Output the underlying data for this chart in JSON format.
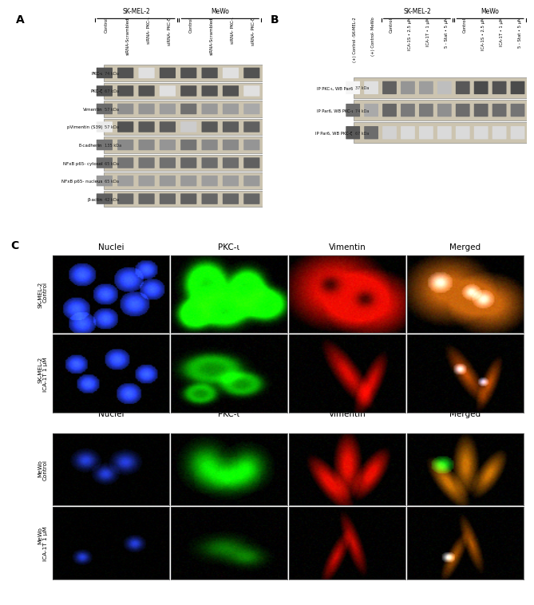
{
  "background_color": "#ffffff",
  "panel_A": {
    "label": "A",
    "title_SK": "SK-MEL-2",
    "title_MeWo": "MeWo",
    "col_labels": [
      "Control",
      "siRNA-Scrambled",
      "siRNA- PKC-ι",
      "siRNA- PKC-ζ",
      "Control",
      "siRNA-Scrambled",
      "siRNA- PKC-ι",
      "siRNA- PKC-ζ"
    ],
    "row_labels": [
      [
        "PKC-ι",
        "74 kDa"
      ],
      [
        "PKC-ζ",
        "67 kDa"
      ],
      [
        "Vimentin",
        "57 kDa"
      ],
      [
        "pVimentin (S39)",
        "57 kDa"
      ],
      [
        "E-cadherin",
        "135 kDa"
      ],
      [
        "NFxB p65- cytosol",
        "65 kDa"
      ],
      [
        "NFxB p65- nucleus",
        "65 kDa"
      ],
      [
        "β-actin",
        "42 kDa"
      ]
    ],
    "band_intensities": [
      [
        0.85,
        0.85,
        0.15,
        0.85,
        0.85,
        0.85,
        0.15,
        0.85
      ],
      [
        0.85,
        0.85,
        0.85,
        0.15,
        0.85,
        0.85,
        0.85,
        0.15
      ],
      [
        0.72,
        0.55,
        0.52,
        0.48,
        0.7,
        0.5,
        0.48,
        0.42
      ],
      [
        0.1,
        0.85,
        0.82,
        0.8,
        0.25,
        0.82,
        0.8,
        0.78
      ],
      [
        0.68,
        0.58,
        0.58,
        0.52,
        0.68,
        0.58,
        0.58,
        0.52
      ],
      [
        0.72,
        0.68,
        0.68,
        0.7,
        0.75,
        0.72,
        0.72,
        0.78
      ],
      [
        0.5,
        0.48,
        0.48,
        0.5,
        0.5,
        0.48,
        0.48,
        0.5
      ],
      [
        0.78,
        0.75,
        0.75,
        0.75,
        0.78,
        0.75,
        0.75,
        0.75
      ]
    ]
  },
  "panel_B": {
    "label": "B",
    "title_SK": "SK-MEL-2",
    "title_MeWo": "MeWo",
    "col_labels": [
      "(+) Control -SK-MEL-2",
      "(+) Control- MeWo",
      "Control",
      "ICA-1S • 2.5 μM",
      "ICA-1T • 1 μM",
      "5 - Stat • 5 μM",
      "Control",
      "ICA-1S • 2.5 μM",
      "ICA-1T • 1 μM",
      "5 - Stat • 5 μM"
    ],
    "row_labels": [
      [
        "IP PKC-ι, WB Par6",
        "37 kDa"
      ],
      [
        "IP Par6, WB PKC-ι",
        "74 kDa"
      ],
      [
        "IP Par6, WB PKC-ζ",
        "67 kDa"
      ]
    ],
    "band_intensities": [
      [
        0.05,
        0.15,
        0.78,
        0.52,
        0.48,
        0.32,
        0.82,
        0.88,
        0.85,
        0.88
      ],
      [
        0.72,
        0.42,
        0.75,
        0.65,
        0.65,
        0.55,
        0.72,
        0.75,
        0.72,
        0.68
      ],
      [
        0.82,
        0.72,
        0.22,
        0.18,
        0.18,
        0.18,
        0.18,
        0.18,
        0.18,
        0.18
      ]
    ]
  },
  "panel_C": {
    "label": "C",
    "col_headers": [
      "Nuclei",
      "PKC-ι",
      "Vimentin",
      "Merged"
    ],
    "row_labels_top": [
      "SK-MEL-2\nControl",
      "SK-MEL-2\nICA-1T 1 μM"
    ],
    "col_headers_mid": [
      "Nuclei",
      "PKC-ι",
      "Vimentin",
      "Merged"
    ],
    "row_labels_bot": [
      "MeWo\nControl",
      "MeWo\nICA-1T 1 μM"
    ]
  }
}
